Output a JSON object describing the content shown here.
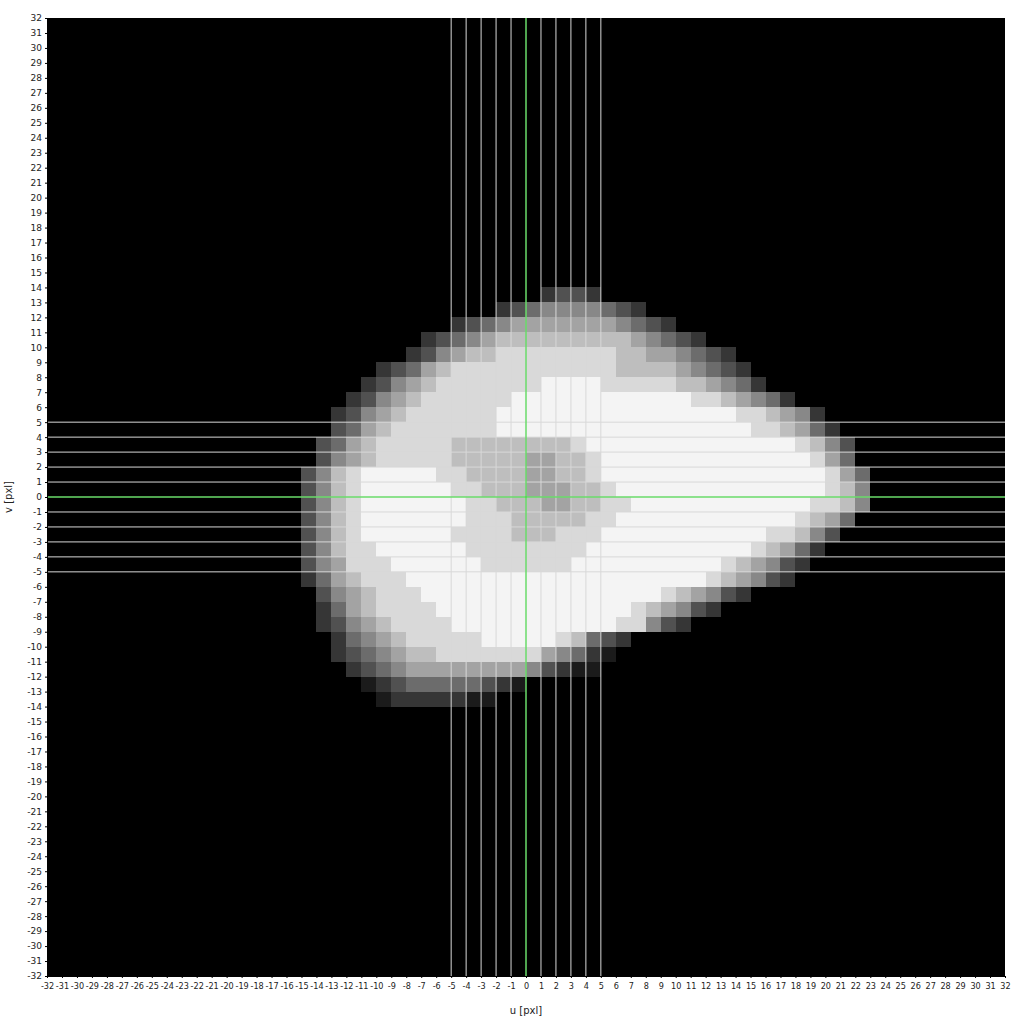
{
  "chart_data": {
    "type": "heatmap",
    "xlabel": "u [pxl]",
    "ylabel": "v [pxl]",
    "xlim": [
      -32,
      32
    ],
    "ylim": [
      -32,
      32
    ],
    "xticks": [
      -32,
      -31,
      -30,
      -29,
      -28,
      -27,
      -26,
      -25,
      -24,
      -23,
      -22,
      -21,
      -20,
      -19,
      -18,
      -17,
      -16,
      -15,
      -14,
      -13,
      -12,
      -11,
      -10,
      -9,
      -8,
      -7,
      -6,
      -5,
      -4,
      -3,
      -2,
      -1,
      0,
      1,
      2,
      3,
      4,
      5,
      6,
      7,
      8,
      9,
      10,
      11,
      12,
      13,
      14,
      15,
      16,
      17,
      18,
      19,
      20,
      21,
      22,
      23,
      24,
      25,
      26,
      27,
      28,
      29,
      30,
      31,
      32
    ],
    "yticks": [
      -32,
      -31,
      -30,
      -29,
      -28,
      -27,
      -26,
      -25,
      -24,
      -23,
      -22,
      -21,
      -20,
      -19,
      -18,
      -17,
      -16,
      -15,
      -14,
      -13,
      -12,
      -11,
      -10,
      -9,
      -8,
      -7,
      -6,
      -5,
      -4,
      -3,
      -2,
      -1,
      0,
      1,
      2,
      3,
      4,
      5,
      6,
      7,
      8,
      9,
      10,
      11,
      12,
      13,
      14,
      15,
      16,
      17,
      18,
      19,
      20,
      21,
      22,
      23,
      24,
      25,
      26,
      27,
      28,
      29,
      30,
      31,
      32
    ],
    "grid": true,
    "grid_lines": {
      "u": [
        -5,
        -4,
        -3,
        -2,
        -1,
        0,
        1,
        2,
        3,
        4,
        5
      ],
      "v": [
        -5,
        -4,
        -3,
        -2,
        -1,
        0,
        1,
        2,
        3,
        4,
        5
      ],
      "center": [
        0,
        0
      ]
    },
    "x": [
      -16,
      -15,
      -14,
      -13,
      -12,
      -11,
      -10,
      -9,
      -8,
      -7,
      -6,
      -5,
      -4,
      -3,
      -2,
      -1,
      0,
      1,
      2,
      3,
      4,
      5,
      6,
      7,
      8,
      9,
      10,
      11,
      12,
      13,
      14,
      15,
      16,
      17,
      18,
      19,
      20,
      21,
      22
    ],
    "y": [
      13,
      12,
      11,
      10,
      9,
      8,
      7,
      6,
      5,
      4,
      3,
      2,
      1,
      0,
      -1,
      -2,
      -3,
      -4,
      -5,
      -6,
      -7,
      -8,
      -9,
      -10,
      -11,
      -12,
      -13,
      -14
    ],
    "z": [
      [
        0,
        0,
        0,
        0,
        0,
        0,
        0,
        0,
        0,
        0,
        0,
        0,
        0,
        0,
        0,
        0,
        0,
        2,
        3,
        3,
        2,
        0,
        0,
        0,
        0,
        0,
        0,
        0,
        0,
        0,
        0,
        0,
        0,
        0,
        0,
        0,
        0,
        0,
        0
      ],
      [
        0,
        0,
        0,
        0,
        0,
        0,
        0,
        0,
        0,
        0,
        0,
        0,
        0,
        0,
        2,
        3,
        4,
        5,
        5,
        5,
        5,
        4,
        3,
        2,
        0,
        0,
        0,
        0,
        0,
        0,
        0,
        0,
        0,
        0,
        0,
        0,
        0,
        0,
        0
      ],
      [
        0,
        0,
        0,
        0,
        0,
        0,
        0,
        0,
        0,
        0,
        0,
        2,
        3,
        4,
        5,
        6,
        6,
        6,
        6,
        6,
        6,
        6,
        5,
        4,
        3,
        2,
        0,
        0,
        0,
        0,
        0,
        0,
        0,
        0,
        0,
        0,
        0,
        0,
        0
      ],
      [
        0,
        0,
        0,
        0,
        0,
        0,
        0,
        0,
        0,
        2,
        3,
        4,
        5,
        6,
        7,
        7,
        7,
        7,
        7,
        7,
        7,
        7,
        7,
        6,
        5,
        4,
        3,
        2,
        0,
        0,
        0,
        0,
        0,
        0,
        0,
        0,
        0,
        0,
        0
      ],
      [
        0,
        0,
        0,
        0,
        0,
        0,
        0,
        0,
        2,
        3,
        5,
        6,
        7,
        7,
        8,
        8,
        8,
        8,
        8,
        8,
        8,
        8,
        7,
        7,
        6,
        6,
        5,
        4,
        3,
        2,
        0,
        0,
        0,
        0,
        0,
        0,
        0,
        0,
        0
      ],
      [
        0,
        0,
        0,
        0,
        0,
        0,
        2,
        3,
        4,
        6,
        7,
        8,
        8,
        8,
        8,
        8,
        8,
        8,
        8,
        8,
        8,
        8,
        7,
        7,
        7,
        7,
        6,
        5,
        4,
        3,
        2,
        0,
        0,
        0,
        0,
        0,
        0,
        0,
        0
      ],
      [
        0,
        0,
        0,
        0,
        0,
        2,
        3,
        5,
        6,
        7,
        8,
        8,
        8,
        8,
        8,
        8,
        8,
        9,
        9,
        9,
        9,
        8,
        8,
        8,
        8,
        8,
        7,
        7,
        6,
        5,
        4,
        2,
        0,
        0,
        0,
        0,
        0,
        0,
        0
      ],
      [
        0,
        0,
        0,
        0,
        2,
        3,
        5,
        6,
        7,
        8,
        8,
        8,
        8,
        8,
        8,
        9,
        9,
        9,
        9,
        9,
        9,
        9,
        9,
        9,
        9,
        9,
        9,
        8,
        8,
        7,
        6,
        5,
        4,
        2,
        0,
        0,
        0,
        0,
        0
      ],
      [
        0,
        0,
        0,
        2,
        3,
        5,
        6,
        7,
        8,
        8,
        8,
        8,
        8,
        8,
        9,
        9,
        9,
        9,
        9,
        9,
        9,
        9,
        9,
        9,
        9,
        9,
        9,
        9,
        9,
        9,
        8,
        8,
        7,
        6,
        5,
        2,
        0,
        0,
        0
      ],
      [
        0,
        0,
        0,
        3,
        4,
        6,
        7,
        8,
        8,
        8,
        8,
        8,
        8,
        8,
        9,
        9,
        9,
        9,
        9,
        9,
        9,
        9,
        9,
        9,
        9,
        9,
        9,
        9,
        9,
        9,
        9,
        8,
        8,
        7,
        6,
        4,
        2,
        0,
        0
      ],
      [
        0,
        0,
        3,
        4,
        6,
        7,
        8,
        8,
        8,
        8,
        8,
        7,
        7,
        7,
        7,
        7,
        7,
        7,
        7,
        8,
        9,
        9,
        9,
        9,
        9,
        9,
        9,
        9,
        9,
        9,
        9,
        9,
        9,
        9,
        8,
        7,
        5,
        3,
        0
      ],
      [
        0,
        0,
        3,
        5,
        6,
        7,
        8,
        8,
        8,
        8,
        8,
        7,
        7,
        7,
        7,
        7,
        6,
        6,
        7,
        7,
        8,
        9,
        9,
        9,
        9,
        9,
        9,
        9,
        9,
        9,
        9,
        9,
        9,
        9,
        9,
        8,
        6,
        4,
        0
      ],
      [
        0,
        3,
        5,
        7,
        8,
        9,
        9,
        9,
        9,
        9,
        8,
        8,
        7,
        7,
        7,
        7,
        6,
        6,
        7,
        7,
        8,
        9,
        9,
        9,
        9,
        9,
        9,
        9,
        9,
        9,
        9,
        9,
        9,
        9,
        9,
        9,
        8,
        6,
        4
      ],
      [
        0,
        3,
        5,
        7,
        8,
        9,
        9,
        9,
        9,
        9,
        9,
        8,
        8,
        7,
        7,
        7,
        6,
        6,
        6,
        7,
        7,
        8,
        9,
        9,
        9,
        9,
        9,
        9,
        9,
        9,
        9,
        9,
        9,
        9,
        9,
        9,
        8,
        7,
        5
      ],
      [
        0,
        3,
        5,
        7,
        8,
        9,
        9,
        9,
        9,
        9,
        9,
        9,
        8,
        8,
        7,
        7,
        7,
        6,
        6,
        7,
        7,
        8,
        8,
        9,
        9,
        9,
        9,
        9,
        9,
        9,
        9,
        9,
        9,
        9,
        9,
        8,
        8,
        7,
        5
      ],
      [
        0,
        3,
        5,
        7,
        8,
        9,
        9,
        9,
        9,
        9,
        9,
        9,
        8,
        8,
        8,
        7,
        7,
        7,
        7,
        7,
        8,
        8,
        9,
        9,
        9,
        9,
        9,
        9,
        9,
        9,
        9,
        9,
        9,
        9,
        8,
        7,
        6,
        4,
        0
      ],
      [
        0,
        3,
        5,
        7,
        8,
        9,
        9,
        9,
        9,
        9,
        9,
        8,
        8,
        8,
        8,
        7,
        7,
        7,
        8,
        8,
        8,
        9,
        9,
        9,
        9,
        9,
        9,
        9,
        9,
        9,
        9,
        9,
        8,
        8,
        7,
        5,
        3,
        0,
        0
      ],
      [
        0,
        3,
        5,
        7,
        8,
        8,
        9,
        9,
        9,
        9,
        9,
        9,
        8,
        8,
        8,
        8,
        8,
        8,
        8,
        8,
        9,
        9,
        9,
        9,
        9,
        9,
        9,
        9,
        9,
        9,
        9,
        8,
        7,
        6,
        4,
        2,
        0,
        0,
        0
      ],
      [
        0,
        3,
        5,
        6,
        8,
        8,
        8,
        9,
        9,
        9,
        9,
        9,
        9,
        8,
        8,
        8,
        8,
        8,
        8,
        9,
        9,
        9,
        9,
        9,
        9,
        9,
        9,
        9,
        9,
        8,
        7,
        6,
        5,
        3,
        2,
        0,
        0,
        0,
        0
      ],
      [
        0,
        2,
        4,
        6,
        7,
        8,
        8,
        8,
        9,
        9,
        9,
        9,
        9,
        9,
        9,
        9,
        9,
        9,
        9,
        9,
        9,
        9,
        9,
        9,
        9,
        9,
        9,
        9,
        8,
        7,
        6,
        5,
        3,
        2,
        0,
        0,
        0,
        0,
        0
      ],
      [
        0,
        0,
        3,
        5,
        6,
        7,
        8,
        8,
        8,
        9,
        9,
        9,
        9,
        9,
        9,
        9,
        9,
        9,
        9,
        9,
        9,
        9,
        9,
        9,
        9,
        8,
        7,
        6,
        5,
        3,
        2,
        0,
        0,
        0,
        0,
        0,
        0,
        0,
        0
      ],
      [
        0,
        0,
        2,
        4,
        6,
        7,
        8,
        8,
        8,
        8,
        9,
        9,
        9,
        9,
        9,
        9,
        9,
        9,
        9,
        9,
        9,
        9,
        9,
        8,
        7,
        6,
        5,
        3,
        2,
        0,
        0,
        0,
        0,
        0,
        0,
        0,
        0,
        0,
        0
      ],
      [
        0,
        0,
        2,
        3,
        5,
        6,
        7,
        8,
        8,
        8,
        8,
        9,
        9,
        9,
        9,
        9,
        9,
        9,
        9,
        9,
        9,
        9,
        8,
        8,
        5,
        3,
        2,
        0,
        0,
        0,
        0,
        0,
        0,
        0,
        0,
        0,
        0,
        0,
        0
      ],
      [
        0,
        0,
        0,
        2,
        4,
        5,
        6,
        7,
        8,
        8,
        8,
        8,
        8,
        9,
        9,
        9,
        9,
        9,
        8,
        7,
        4,
        3,
        2,
        0,
        0,
        0,
        0,
        0,
        0,
        0,
        0,
        0,
        0,
        0,
        0,
        0,
        0,
        0,
        0
      ],
      [
        0,
        0,
        0,
        2,
        3,
        4,
        5,
        6,
        7,
        7,
        8,
        8,
        8,
        8,
        8,
        8,
        8,
        6,
        5,
        4,
        2,
        1,
        0,
        0,
        0,
        0,
        0,
        0,
        0,
        0,
        0,
        0,
        0,
        0,
        0,
        0,
        0,
        0,
        0
      ],
      [
        0,
        0,
        0,
        0,
        2,
        3,
        4,
        5,
        6,
        6,
        6,
        6,
        6,
        6,
        6,
        6,
        5,
        3,
        2,
        1,
        1,
        0,
        0,
        0,
        0,
        0,
        0,
        0,
        0,
        0,
        0,
        0,
        0,
        0,
        0,
        0,
        0,
        0,
        0
      ],
      [
        0,
        0,
        0,
        0,
        0,
        1,
        2,
        3,
        4,
        4,
        4,
        4,
        4,
        3,
        2,
        1,
        0,
        0,
        0,
        0,
        0,
        0,
        0,
        0,
        0,
        0,
        0,
        0,
        0,
        0,
        0,
        0,
        0,
        0,
        0,
        0,
        0,
        0,
        0
      ],
      [
        0,
        0,
        0,
        0,
        0,
        0,
        1,
        2,
        2,
        2,
        2,
        2,
        1,
        1,
        0,
        0,
        0,
        0,
        0,
        0,
        0,
        0,
        0,
        0,
        0,
        0,
        0,
        0,
        0,
        0,
        0,
        0,
        0,
        0,
        0,
        0,
        0,
        0,
        0
      ]
    ]
  }
}
